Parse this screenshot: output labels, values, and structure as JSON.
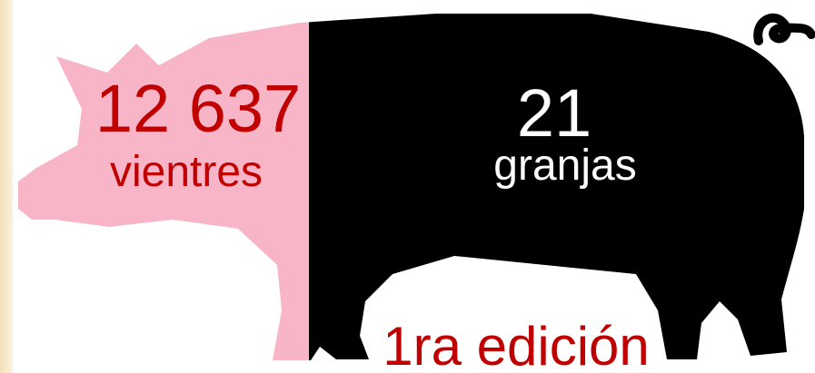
{
  "stats": [
    {
      "value": "12 637",
      "label": "vientres"
    },
    {
      "value": "21",
      "label": "granjas"
    }
  ],
  "edition": "1ra edición"
}
